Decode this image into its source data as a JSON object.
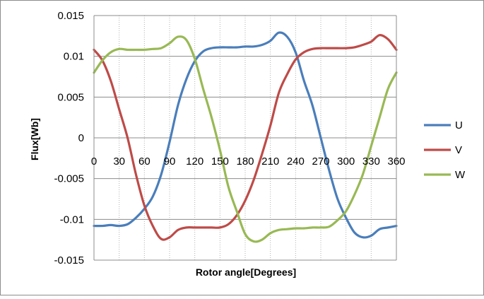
{
  "chart_data": {
    "type": "line",
    "title": "",
    "xlabel": "Rotor angle[Degrees]",
    "ylabel": "Flux[Wb]",
    "xlim": [
      0,
      360
    ],
    "ylim": [
      -0.015,
      0.015
    ],
    "x_ticks": [
      "0",
      "30",
      "60",
      "90",
      "120",
      "150",
      "180",
      "210",
      "240",
      "270",
      "300",
      "330",
      "360"
    ],
    "y_ticks": [
      "0.015",
      "0.01",
      "0.005",
      "0",
      "-0.005",
      "-0.01",
      "-0.015"
    ],
    "grid": {
      "horizontal": "solid",
      "vertical": "dotted"
    },
    "legend_position": "right",
    "x": [
      0,
      10,
      20,
      30,
      40,
      50,
      60,
      70,
      80,
      90,
      100,
      110,
      120,
      130,
      140,
      150,
      160,
      170,
      180,
      190,
      200,
      210,
      220,
      230,
      240,
      250,
      260,
      270,
      280,
      290,
      300,
      310,
      320,
      330,
      340,
      350,
      360
    ],
    "series": [
      {
        "name": "U",
        "color": "#4a7ebb",
        "values": [
          -0.0108,
          -0.0108,
          -0.0107,
          -0.0108,
          -0.0106,
          -0.0098,
          -0.0087,
          -0.0072,
          -0.0045,
          -0.0005,
          0.004,
          0.0072,
          0.0094,
          0.0106,
          0.011,
          0.0111,
          0.0111,
          0.0111,
          0.0112,
          0.0112,
          0.0114,
          0.0119,
          0.0129,
          0.0124,
          0.0105,
          0.007,
          0.004,
          0.0,
          -0.004,
          -0.0075,
          -0.0098,
          -0.0116,
          -0.0122,
          -0.012,
          -0.0112,
          -0.011,
          -0.0108
        ]
      },
      {
        "name": "V",
        "color": "#be4b48",
        "values": [
          0.0108,
          0.0095,
          0.007,
          0.0035,
          0.0,
          -0.0045,
          -0.0083,
          -0.0108,
          -0.0124,
          -0.0122,
          -0.0113,
          -0.011,
          -0.011,
          -0.011,
          -0.011,
          -0.011,
          -0.0106,
          -0.0095,
          -0.0077,
          -0.0052,
          -0.002,
          0.0015,
          0.0055,
          0.0078,
          0.0096,
          0.0105,
          0.0109,
          0.011,
          0.011,
          0.011,
          0.011,
          0.0111,
          0.0114,
          0.0118,
          0.0126,
          0.0121,
          0.0108
        ]
      },
      {
        "name": "W",
        "color": "#98b954",
        "values": [
          0.008,
          0.0095,
          0.0105,
          0.0109,
          0.0108,
          0.0108,
          0.0108,
          0.0109,
          0.011,
          0.0116,
          0.0124,
          0.012,
          0.0097,
          0.006,
          0.0025,
          -0.0015,
          -0.006,
          -0.009,
          -0.0118,
          -0.0127,
          -0.0125,
          -0.0117,
          -0.0113,
          -0.0112,
          -0.0111,
          -0.0111,
          -0.011,
          -0.011,
          -0.0109,
          -0.0101,
          -0.009,
          -0.007,
          -0.0045,
          -0.001,
          0.0025,
          0.006,
          0.008
        ]
      }
    ]
  }
}
